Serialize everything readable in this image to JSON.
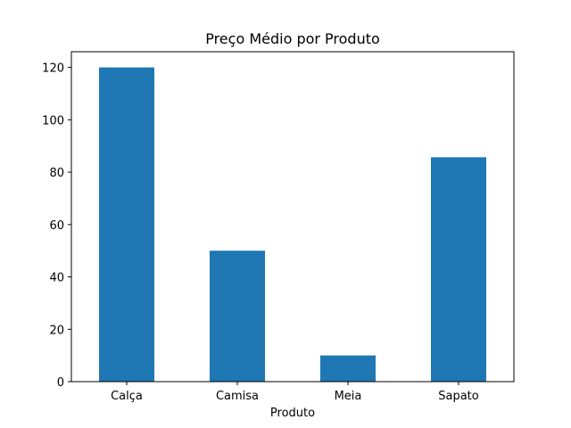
{
  "chart_data": {
    "type": "bar",
    "title": "Preço Médio por Produto",
    "xlabel": "Produto",
    "ylabel": "",
    "categories": [
      "Calça",
      "Camisa",
      "Meia",
      "Sapato"
    ],
    "values": [
      120,
      50,
      10,
      85.7
    ],
    "ylim": [
      0,
      126
    ],
    "yticks": [
      0,
      20,
      40,
      60,
      80,
      100,
      120
    ],
    "grid": false,
    "legend": "none",
    "bar_color": "#1f77b4"
  }
}
